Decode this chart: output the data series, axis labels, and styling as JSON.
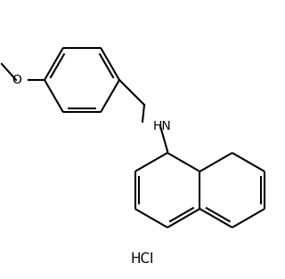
{
  "background_color": "#ffffff",
  "line_color": "#000000",
  "line_width": 1.5,
  "font_size_atom": 10,
  "font_size_hcl": 11,
  "hcl_text": "HCl",
  "hn_text": "HN",
  "o_text": "O"
}
